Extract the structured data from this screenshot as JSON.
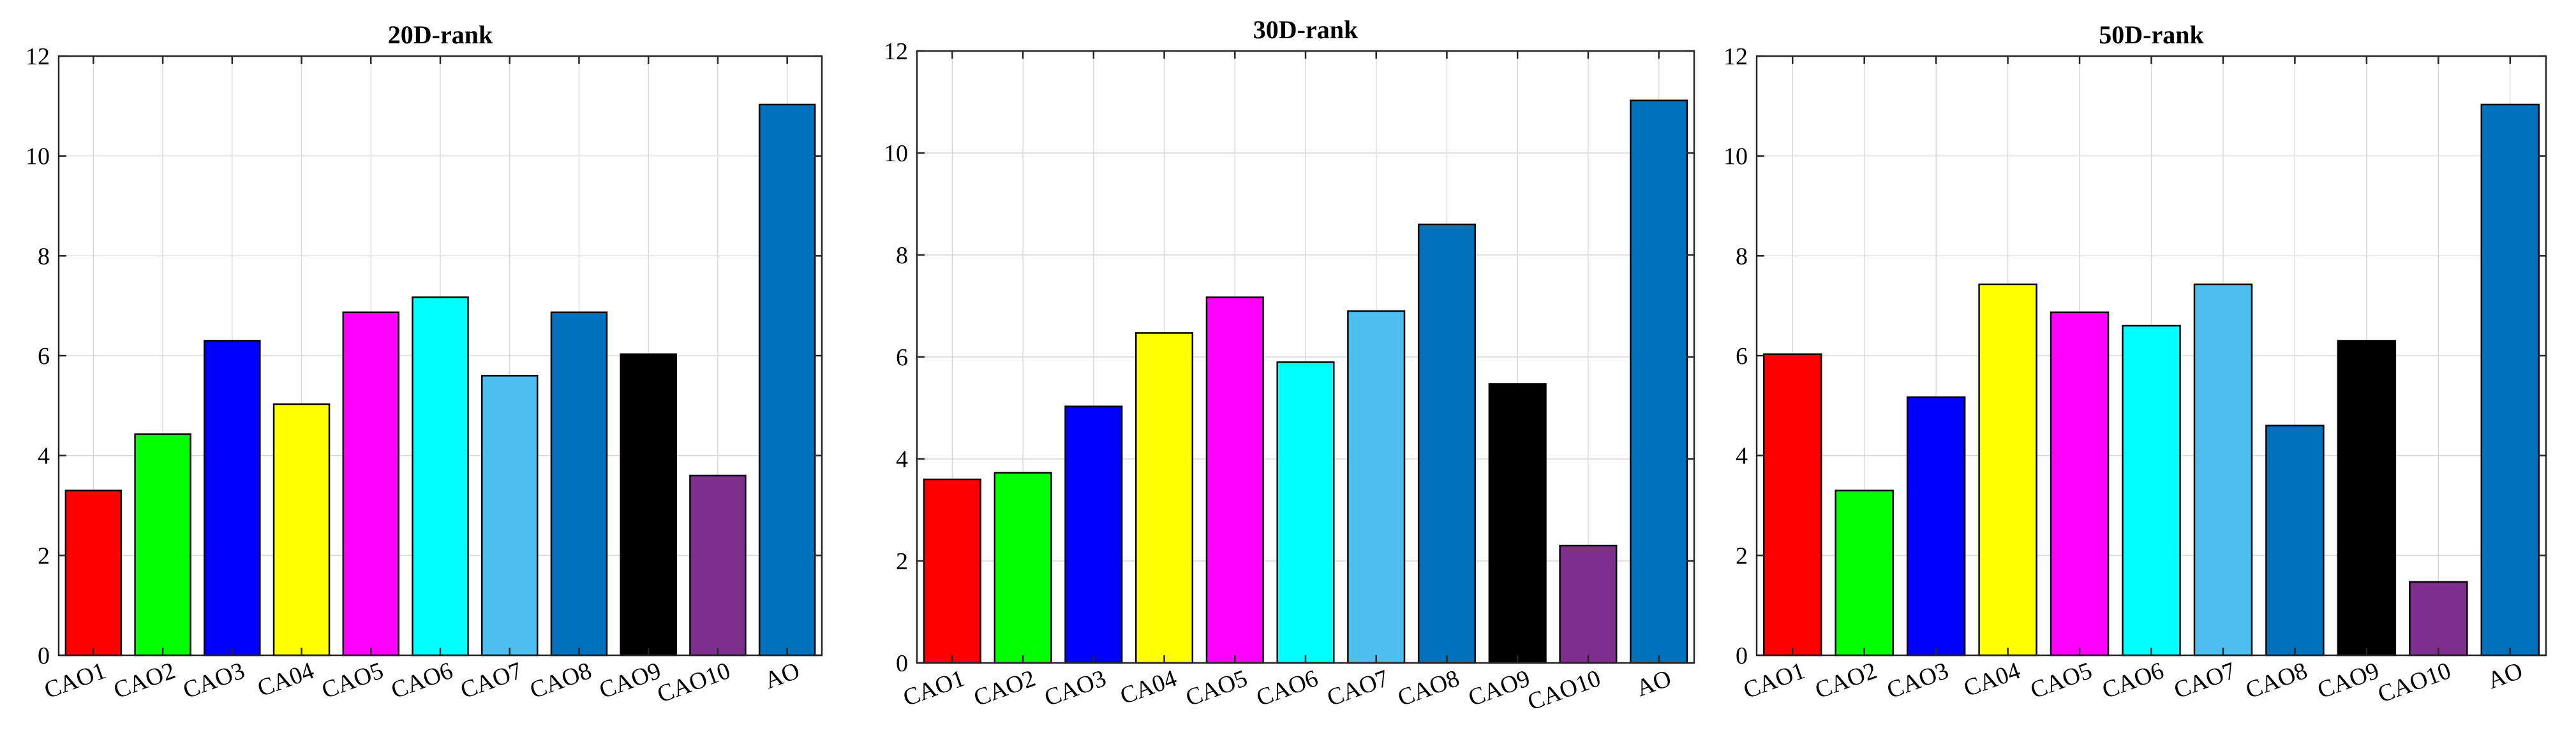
{
  "palette": [
    "#FF0000",
    "#00FF00",
    "#0000FF",
    "#FFFF00",
    "#FF00FF",
    "#00FFFF",
    "#4DBEEE",
    "#0072BD",
    "#000000",
    "#7E2F8E",
    "#0072BD"
  ],
  "chart_data": [
    {
      "type": "bar",
      "title": "20D-rank",
      "categories": [
        "CAO1",
        "CAO2",
        "CAO3",
        "CA04",
        "CAO5",
        "CAO6",
        "CAO7",
        "CAO8",
        "CAO9",
        "CAO10",
        "AO"
      ],
      "values": [
        3.3,
        4.43,
        6.3,
        5.03,
        6.87,
        7.17,
        5.6,
        6.87,
        6.03,
        3.6,
        11.03
      ],
      "ylim": [
        0,
        12
      ],
      "yticks": [
        "0",
        "2",
        "4",
        "6",
        "8",
        "10",
        "12"
      ],
      "xlabel": "",
      "ylabel": "",
      "grid": true
    },
    {
      "type": "bar",
      "title": "30D-rank",
      "categories": [
        "CAO1",
        "CAO2",
        "CAO3",
        "CA04",
        "CAO5",
        "CAO6",
        "CAO7",
        "CAO8",
        "CAO9",
        "CAO10",
        "AO"
      ],
      "values": [
        3.6,
        3.73,
        5.03,
        6.47,
        7.17,
        5.9,
        6.9,
        8.6,
        5.47,
        2.3,
        11.03
      ],
      "ylim": [
        0,
        12
      ],
      "yticks": [
        "0",
        "2",
        "4",
        "6",
        "8",
        "10",
        "12"
      ],
      "xlabel": "",
      "ylabel": "",
      "grid": true
    },
    {
      "type": "bar",
      "title": "50D-rank",
      "categories": [
        "CAO1",
        "CAO2",
        "CAO3",
        "CA04",
        "CAO5",
        "CAO6",
        "CAO7",
        "CAO8",
        "CAO9",
        "CAO10",
        "AO"
      ],
      "values": [
        6.03,
        3.3,
        5.17,
        7.43,
        6.87,
        6.6,
        7.43,
        4.6,
        6.3,
        1.47,
        11.03
      ],
      "ylim": [
        0,
        12
      ],
      "yticks": [
        "0",
        "2",
        "4",
        "6",
        "8",
        "10",
        "12"
      ],
      "xlabel": "",
      "ylabel": "",
      "grid": true
    }
  ]
}
